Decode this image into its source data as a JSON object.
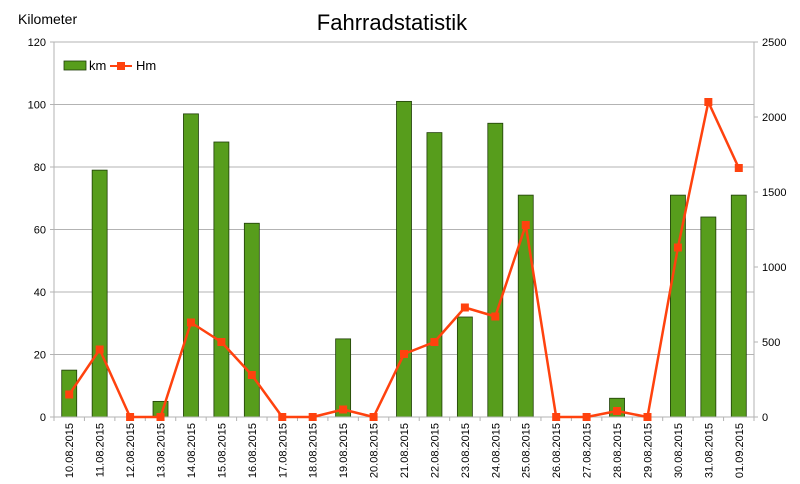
{
  "chart_data": {
    "type": "bar",
    "title": "Fahrradstatistik",
    "ylabel": "Kilometer",
    "y2label": "",
    "xlabel": "",
    "categories": [
      "10.08.2015",
      "11.08.2015",
      "12.08.2015",
      "13.08.2015",
      "14.08.2015",
      "15.08.2015",
      "16.08.2015",
      "17.08.2015",
      "18.08.2015",
      "19.08.2015",
      "20.08.2015",
      "21.08.2015",
      "22.08.2015",
      "23.08.2015",
      "24.08.2015",
      "25.08.2015",
      "26.08.2015",
      "27.08.2015",
      "28.08.2015",
      "29.08.2015",
      "30.08.2015",
      "31.08.2015",
      "01.09.2015"
    ],
    "ylim": [
      0,
      120
    ],
    "y2lim": [
      0,
      2500
    ],
    "yticks": [
      0,
      20,
      40,
      60,
      80,
      100,
      120
    ],
    "y2ticks": [
      0,
      500,
      1000,
      1500,
      2000,
      2500
    ],
    "grid": "horizontal",
    "legend_position": "top-left",
    "series": [
      {
        "name": "km",
        "type": "bar",
        "axis": "left",
        "color": "#579d1c",
        "values": [
          15,
          79,
          0,
          5,
          97,
          88,
          62,
          0,
          0,
          25,
          0,
          101,
          91,
          32,
          94,
          71,
          0,
          0,
          6,
          0,
          71,
          64,
          71
        ]
      },
      {
        "name": "Hm",
        "type": "line",
        "axis": "right",
        "color": "#ff420e",
        "values": [
          150,
          450,
          0,
          0,
          630,
          500,
          280,
          0,
          0,
          50,
          0,
          420,
          500,
          730,
          670,
          1280,
          0,
          0,
          40,
          0,
          1130,
          2100,
          1660
        ]
      }
    ]
  }
}
